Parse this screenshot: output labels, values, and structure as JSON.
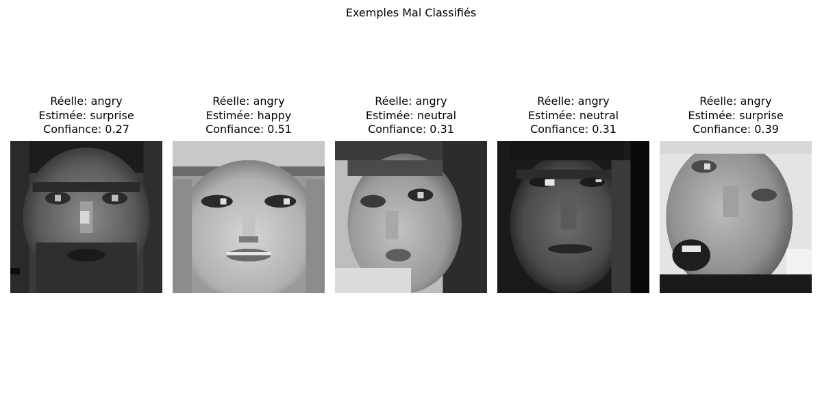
{
  "figure": {
    "title": "Exemples Mal Classifiés"
  },
  "panels": [
    {
      "actual": "Réelle: angry",
      "predicted": "Estimée: surprise",
      "confidence": "Confiance: 0.27"
    },
    {
      "actual": "Réelle: angry",
      "predicted": "Estimée: happy",
      "confidence": "Confiance: 0.51"
    },
    {
      "actual": "Réelle: angry",
      "predicted": "Estimée: neutral",
      "confidence": "Confiance: 0.31"
    },
    {
      "actual": "Réelle: angry",
      "predicted": "Estimée: neutral",
      "confidence": "Confiance: 0.31"
    },
    {
      "actual": "Réelle: angry",
      "predicted": "Estimée: surprise",
      "confidence": "Confiance: 0.39"
    }
  ]
}
